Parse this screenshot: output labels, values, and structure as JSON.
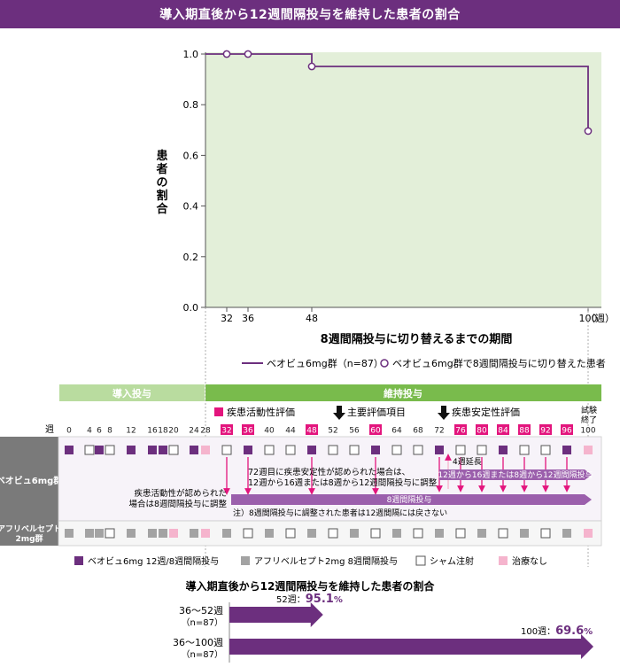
{
  "banner": {
    "title": "導入期直後から12週間隔投与を維持した患者の割合"
  },
  "chart_data": [
    {
      "type": "line",
      "step": true,
      "ylabel": "患者の割合",
      "xlabel": "8週間隔投与に切り替えるまでの期間",
      "x_ticks": [
        "32",
        "36",
        "48",
        "100"
      ],
      "x_unit": "（週）",
      "y_ticks": [
        "0.0",
        "0.2",
        "0.4",
        "0.6",
        "0.8",
        "1.0"
      ],
      "ylim": [
        0,
        1.0
      ],
      "xlim": [
        28,
        104
      ],
      "series": [
        {
          "name": "ベオビュ6mg群（n=87）",
          "x": [
            28,
            32,
            36,
            48,
            100
          ],
          "y": [
            1.0,
            1.0,
            1.0,
            0.951,
            0.696
          ],
          "color": "#6c2f7e"
        }
      ],
      "markers": {
        "name": "ベオビュ6mg群で8週間隔投与に切り替えた患者",
        "x": [
          32,
          36,
          48,
          100
        ],
        "y": [
          1.0,
          1.0,
          0.951,
          0.696
        ]
      },
      "legend_position": "bottom"
    },
    {
      "type": "bar",
      "orientation": "horizontal",
      "title": "導入期直後から12週間隔投与を維持した患者の割合",
      "categories": [
        "36〜52週",
        "36〜100週"
      ],
      "n_labels": [
        "（n=87）",
        "（n=87）"
      ],
      "value_prefix": [
        "52週：",
        "100週："
      ],
      "values": [
        95.1,
        69.6
      ],
      "value_texts": [
        "95.1",
        "69.6"
      ],
      "unit": "%",
      "color": "#6c2f7e"
    }
  ],
  "schedule": {
    "phase_induction": "導入投与",
    "phase_maintenance": "維持投与",
    "week_label": "週",
    "weeks": [
      "0",
      "4",
      "6",
      "8",
      "12",
      "16",
      "18",
      "20",
      "24",
      "28",
      "32",
      "36",
      "40",
      "44",
      "48",
      "52",
      "56",
      "60",
      "64",
      "68",
      "72",
      "76",
      "80",
      "84",
      "88",
      "92",
      "96",
      "100"
    ],
    "highlight_weeks": [
      "32",
      "36",
      "48",
      "60",
      "76",
      "80",
      "84",
      "88",
      "92",
      "96"
    ],
    "trial_end": "試験終了",
    "assessment_label": "疾患活動性評価",
    "primary_endpoint": "主要評価項目",
    "stability_assessment": "疾患安定性評価",
    "group_beovu": "ベオビュ6mg群",
    "group_aflibercept": "アフリベルセプト2mg群",
    "note_stable": "72週目に疾患安定性が認められた場合は、\n12週から16週または8週から12週間隔投与に調整",
    "note_activity": "疾患活動性が認められた\n場合は8週間隔投与に調整",
    "extension": "4週延長",
    "adjust_bar": "12週から16週または8週から12週間隔投与",
    "interval8_bar": "8週間隔投与",
    "footnote": "注）8週間隔投与に調整された患者は12週間隔には戻さない",
    "beovu_row": [
      "V",
      "S",
      "V",
      "S",
      "V",
      "V",
      "V",
      "S",
      "V",
      "N",
      "S",
      "V",
      "S",
      "S",
      "V",
      "S",
      "S",
      "V",
      "S",
      "S",
      "V",
      "S",
      "S",
      "V",
      "S",
      "S",
      "V",
      "N"
    ],
    "aflib_row": [
      "A",
      "A",
      "A",
      "S",
      "A",
      "A",
      "A",
      "N",
      "A",
      "N",
      "A",
      "S",
      "A",
      "S",
      "A",
      "S",
      "A",
      "S",
      "A",
      "S",
      "A",
      "S",
      "A",
      "S",
      "A",
      "S",
      "A",
      "N"
    ]
  },
  "legend": {
    "beovu": "ベオビュ6mg 12週/8週間隔投与",
    "aflib": "アフリベルセプト2mg 8週間隔投与",
    "sham": "シャム注射",
    "none": "治療なし"
  },
  "colors": {
    "purple": "#6c2f7e",
    "green": "#79bb4c",
    "pink": "#e3157d",
    "gray": "#a3a3a3",
    "lightpink": "#f5b4cd",
    "plotbg": "#e3efd9"
  }
}
